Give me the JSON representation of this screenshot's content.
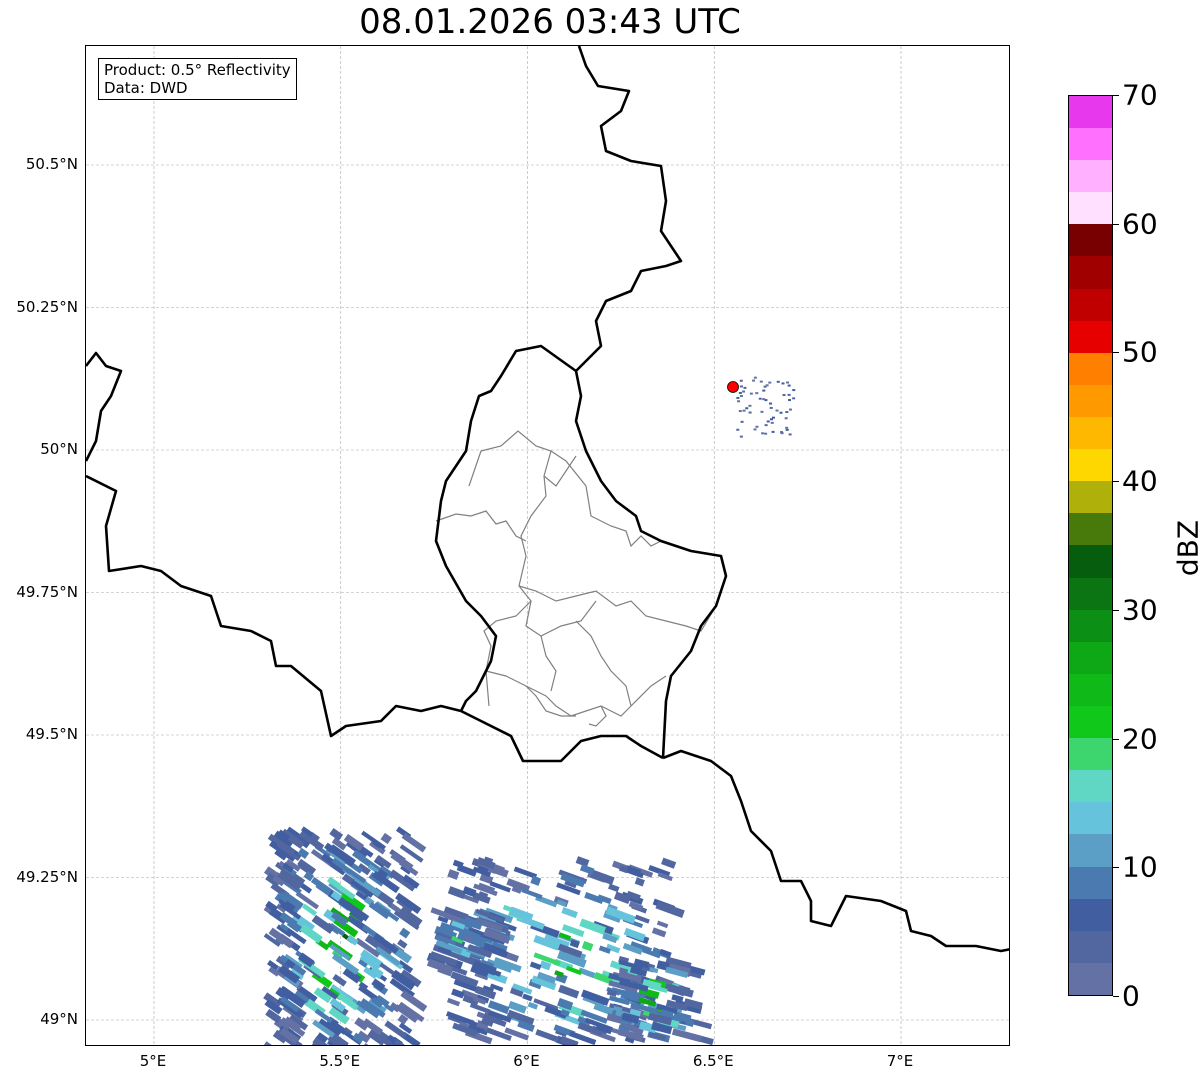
{
  "title": "08.01.2026 03:43 UTC",
  "info_box": {
    "product": "Product: 0.5° Reflectivity",
    "data": "Data: DWD"
  },
  "x_ticks": [
    {
      "lon": 5,
      "label": "5°E"
    },
    {
      "lon": 5.5,
      "label": "5.5°E"
    },
    {
      "lon": 6,
      "label": "6°E"
    },
    {
      "lon": 6.5,
      "label": "6.5°E"
    },
    {
      "lon": 7,
      "label": "7°E"
    }
  ],
  "y_ticks": [
    {
      "lat": 50.5,
      "label": "50.5°N"
    },
    {
      "lat": 50.25,
      "label": "50.25°N"
    },
    {
      "lat": 50,
      "label": "50°N"
    },
    {
      "lat": 49.75,
      "label": "49.75°N"
    },
    {
      "lat": 49.5,
      "label": "49.5°N"
    },
    {
      "lat": 49.25,
      "label": "49.25°N"
    },
    {
      "lat": 49,
      "label": "49°N"
    }
  ],
  "colorbar": {
    "label": "dBZ",
    "min": 0,
    "max": 70,
    "step": 2.5,
    "ticks": [
      "0",
      "10",
      "20",
      "30",
      "40",
      "50",
      "60",
      "70"
    ],
    "colors": [
      "#6471a5",
      "#52679f",
      "#415ea0",
      "#4a7ab0",
      "#5b9ec6",
      "#66c3dc",
      "#5fd7c4",
      "#3dd56e",
      "#10c81a",
      "#0fba18",
      "#0ea716",
      "#0b8f14",
      "#0a7512",
      "#075d0e",
      "#477a0a",
      "#b0b00a",
      "#ffd700",
      "#ffb800",
      "#ff9900",
      "#ff7f00",
      "#e60000",
      "#c00000",
      "#a00000",
      "#780000",
      "#ffe0ff",
      "#ffb0ff",
      "#ff70ff",
      "#e838ee"
    ]
  },
  "radar_site_color": "#ff0000"
}
